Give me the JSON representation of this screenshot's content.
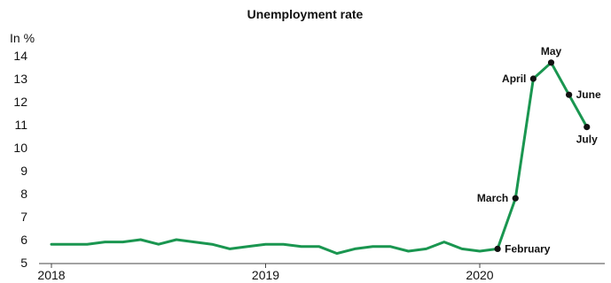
{
  "chart_data": {
    "type": "line",
    "title": "Unemployment rate",
    "ylabel": "In %",
    "xlabel": "",
    "ylim": [
      5,
      14
    ],
    "y_ticks": [
      5,
      6,
      7,
      8,
      9,
      10,
      11,
      12,
      13,
      14
    ],
    "x_ticks": [
      "2018",
      "2019",
      "2020"
    ],
    "grid": false,
    "colors": {
      "line": "#1a9650",
      "marker": "#111111",
      "axis": "#444444"
    },
    "series": [
      {
        "x": [
          "2018-01",
          "2018-02",
          "2018-03",
          "2018-04",
          "2018-05",
          "2018-06",
          "2018-07",
          "2018-08",
          "2018-09",
          "2018-10",
          "2018-11",
          "2018-12",
          "2019-01",
          "2019-02",
          "2019-03",
          "2019-04",
          "2019-05",
          "2019-06",
          "2019-07",
          "2019-08",
          "2019-09",
          "2019-10",
          "2019-11",
          "2019-12",
          "2020-01",
          "2020-02",
          "2020-03",
          "2020-04",
          "2020-05",
          "2020-06",
          "2020-07"
        ],
        "values": [
          5.8,
          5.8,
          5.8,
          5.9,
          5.9,
          6.0,
          5.8,
          6.0,
          5.9,
          5.8,
          5.6,
          5.7,
          5.8,
          5.8,
          5.7,
          5.7,
          5.4,
          5.6,
          5.7,
          5.7,
          5.5,
          5.6,
          5.9,
          5.6,
          5.5,
          5.6,
          7.8,
          13.0,
          13.7,
          12.3,
          10.9
        ]
      }
    ],
    "annotations": [
      {
        "x": "2020-02",
        "y": 5.6,
        "label": "February",
        "position": "right"
      },
      {
        "x": "2020-03",
        "y": 7.8,
        "label": "March",
        "position": "left"
      },
      {
        "x": "2020-04",
        "y": 13.0,
        "label": "April",
        "position": "left"
      },
      {
        "x": "2020-05",
        "y": 13.7,
        "label": "May",
        "position": "above"
      },
      {
        "x": "2020-06",
        "y": 12.3,
        "label": "June",
        "position": "right"
      },
      {
        "x": "2020-07",
        "y": 10.9,
        "label": "July",
        "position": "below"
      }
    ]
  }
}
